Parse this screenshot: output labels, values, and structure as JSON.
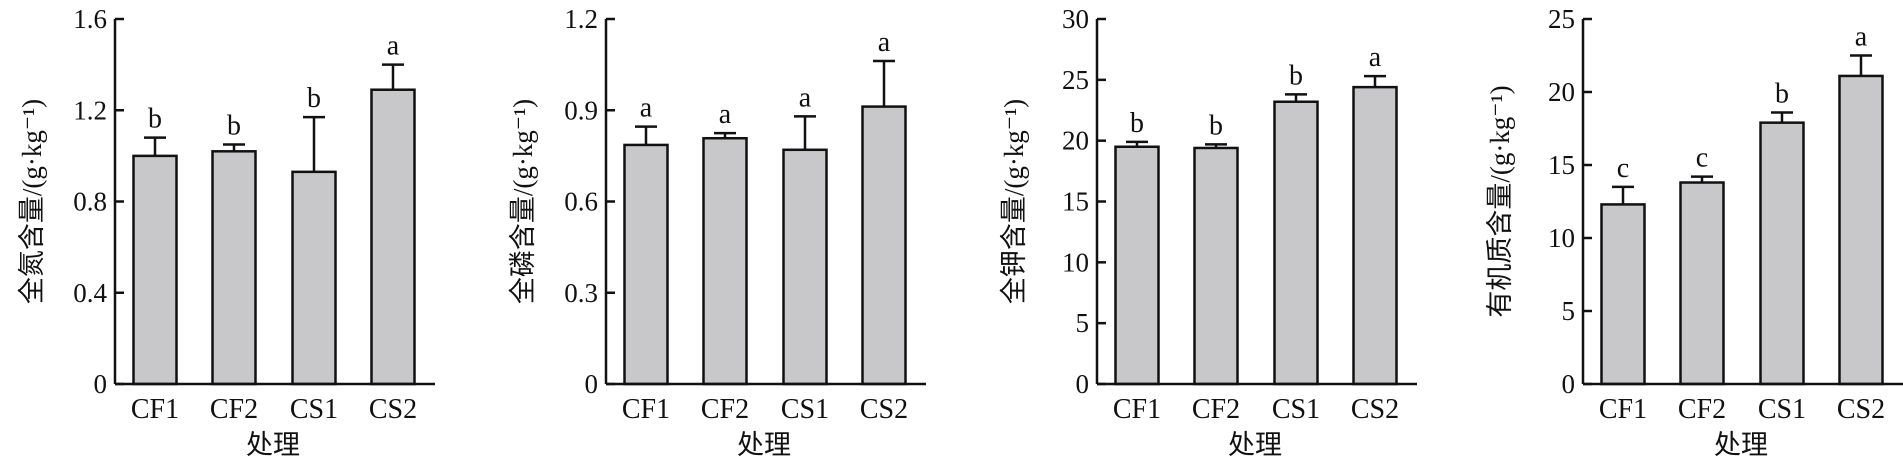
{
  "chart_data": [
    {
      "type": "bar",
      "categories": [
        "CF1",
        "CF2",
        "CS1",
        "CS2"
      ],
      "values": [
        1.0,
        1.02,
        0.93,
        1.29
      ],
      "error_upper": [
        1.08,
        1.05,
        1.17,
        1.4
      ],
      "significance": [
        "b",
        "b",
        "b",
        "a"
      ],
      "ylabel": "全氮含量/(g·kg⁻¹)",
      "xlabel": "处理",
      "ylim": [
        0,
        1.6
      ],
      "yticks": [
        "0",
        "0.4",
        "0.8",
        "1.2",
        "1.6"
      ],
      "ytick_values": [
        0,
        0.4,
        0.8,
        1.2,
        1.6
      ],
      "color": "#c8c8ca"
    },
    {
      "type": "bar",
      "categories": [
        "CF1",
        "CF2",
        "CS1",
        "CS2"
      ],
      "values": [
        0.786,
        0.808,
        0.77,
        0.912
      ],
      "error_upper": [
        0.846,
        0.825,
        0.88,
        1.062
      ],
      "significance": [
        "a",
        "a",
        "a",
        "a"
      ],
      "ylabel": "全磷含量/(g·kg⁻¹)",
      "xlabel": "处理",
      "ylim": [
        0,
        1.2
      ],
      "yticks": [
        "0",
        "0.3",
        "0.6",
        "0.9",
        "1.2"
      ],
      "ytick_values": [
        0,
        0.3,
        0.6,
        0.9,
        1.2
      ],
      "color": "#c8c8ca"
    },
    {
      "type": "bar",
      "categories": [
        "CF1",
        "CF2",
        "CS1",
        "CS2"
      ],
      "values": [
        19.5,
        19.4,
        23.2,
        24.4
      ],
      "error_upper": [
        19.9,
        19.7,
        23.8,
        25.3
      ],
      "significance": [
        "b",
        "b",
        "b",
        "a"
      ],
      "ylabel": "全钾含量/(g·kg⁻¹)",
      "xlabel": "处理",
      "ylim": [
        0,
        30
      ],
      "yticks": [
        "0",
        "5",
        "10",
        "15",
        "20",
        "25",
        "30"
      ],
      "ytick_values": [
        0,
        5,
        10,
        15,
        20,
        25,
        30
      ],
      "color": "#c8c8ca"
    },
    {
      "type": "bar",
      "categories": [
        "CF1",
        "CF2",
        "CS1",
        "CS2"
      ],
      "values": [
        12.3,
        13.8,
        17.9,
        21.1
      ],
      "error_upper": [
        13.5,
        14.2,
        18.6,
        22.5
      ],
      "significance": [
        "c",
        "c",
        "b",
        "a"
      ],
      "ylabel": "有机质含量/(g·kg⁻¹)",
      "xlabel": "处理",
      "ylim": [
        0,
        25
      ],
      "yticks": [
        "0",
        "5",
        "10",
        "15",
        "20",
        "25"
      ],
      "ytick_values": [
        0,
        5,
        10,
        15,
        20,
        25
      ],
      "color": "#c8c8ca"
    }
  ]
}
